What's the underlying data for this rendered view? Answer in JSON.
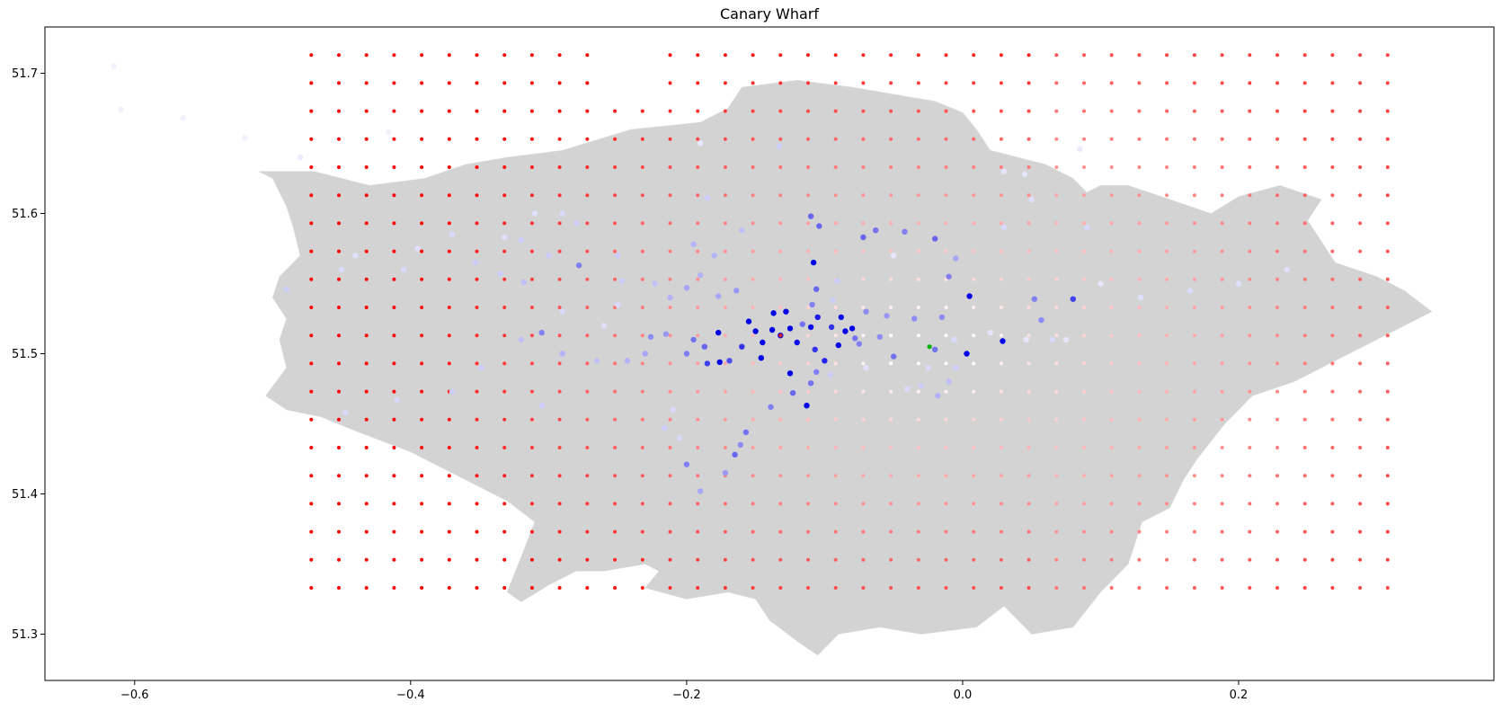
{
  "title": "Canary Wharf",
  "chart_data": {
    "type": "scatter",
    "title": "Canary Wharf",
    "xlabel": "",
    "ylabel": "",
    "xlim": [
      -0.665,
      0.385
    ],
    "ylim": [
      51.267,
      51.733
    ],
    "xticks": [
      -0.6,
      -0.4,
      -0.2,
      0.0,
      0.2
    ],
    "xtick_labels": [
      "−0.6",
      "−0.4",
      "−0.2",
      "0.0",
      "0.2"
    ],
    "yticks": [
      51.3,
      51.4,
      51.5,
      51.6,
      51.7
    ],
    "ytick_labels": [
      "51.3",
      "51.4",
      "51.5",
      "51.6",
      "51.7"
    ],
    "grid": false,
    "legend": "none",
    "colors": {
      "basemap_fill": "#d3d3d3",
      "basemap_edge": "#dcdcdc",
      "grid_points": "#ff0000",
      "stations": "#0000e6",
      "target": "#00b000"
    },
    "basemap": {
      "name": "Greater London boroughs",
      "outline_lonlat": [
        [
          -0.51,
          51.63
        ],
        [
          -0.5,
          51.625
        ],
        [
          -0.49,
          51.605
        ],
        [
          -0.485,
          51.59
        ],
        [
          -0.48,
          51.57
        ],
        [
          -0.495,
          51.555
        ],
        [
          -0.5,
          51.54
        ],
        [
          -0.49,
          51.525
        ],
        [
          -0.495,
          51.51
        ],
        [
          -0.49,
          51.49
        ],
        [
          -0.505,
          51.47
        ],
        [
          -0.49,
          51.46
        ],
        [
          -0.465,
          51.455
        ],
        [
          -0.44,
          51.445
        ],
        [
          -0.4,
          51.43
        ],
        [
          -0.36,
          51.41
        ],
        [
          -0.33,
          51.395
        ],
        [
          -0.31,
          51.38
        ],
        [
          -0.32,
          51.355
        ],
        [
          -0.33,
          51.33
        ],
        [
          -0.32,
          51.323
        ],
        [
          -0.3,
          51.335
        ],
        [
          -0.28,
          51.345
        ],
        [
          -0.26,
          51.345
        ],
        [
          -0.23,
          51.35
        ],
        [
          -0.22,
          51.345
        ],
        [
          -0.23,
          51.333
        ],
        [
          -0.2,
          51.325
        ],
        [
          -0.17,
          51.33
        ],
        [
          -0.15,
          51.325
        ],
        [
          -0.14,
          51.31
        ],
        [
          -0.12,
          51.295
        ],
        [
          -0.105,
          51.285
        ],
        [
          -0.09,
          51.3
        ],
        [
          -0.06,
          51.305
        ],
        [
          -0.03,
          51.3
        ],
        [
          0.01,
          51.305
        ],
        [
          0.03,
          51.32
        ],
        [
          0.05,
          51.3
        ],
        [
          0.08,
          51.305
        ],
        [
          0.1,
          51.33
        ],
        [
          0.12,
          51.35
        ],
        [
          0.13,
          51.38
        ],
        [
          0.15,
          51.39
        ],
        [
          0.16,
          51.41
        ],
        [
          0.17,
          51.425
        ],
        [
          0.19,
          51.45
        ],
        [
          0.21,
          51.47
        ],
        [
          0.24,
          51.48
        ],
        [
          0.27,
          51.495
        ],
        [
          0.3,
          51.51
        ],
        [
          0.33,
          51.525
        ],
        [
          0.34,
          51.53
        ],
        [
          0.32,
          51.545
        ],
        [
          0.3,
          51.555
        ],
        [
          0.285,
          51.56
        ],
        [
          0.27,
          51.565
        ],
        [
          0.26,
          51.58
        ],
        [
          0.25,
          51.595
        ],
        [
          0.26,
          51.61
        ],
        [
          0.23,
          51.62
        ],
        [
          0.2,
          51.612
        ],
        [
          0.18,
          51.6
        ],
        [
          0.15,
          51.61
        ],
        [
          0.12,
          51.62
        ],
        [
          0.1,
          51.62
        ],
        [
          0.09,
          51.615
        ],
        [
          0.08,
          51.625
        ],
        [
          0.06,
          51.635
        ],
        [
          0.04,
          51.64
        ],
        [
          0.02,
          51.645
        ],
        [
          0.01,
          51.66
        ],
        [
          0.0,
          51.672
        ],
        [
          -0.02,
          51.68
        ],
        [
          -0.05,
          51.685
        ],
        [
          -0.08,
          51.69
        ],
        [
          -0.12,
          51.695
        ],
        [
          -0.16,
          51.69
        ],
        [
          -0.17,
          51.675
        ],
        [
          -0.19,
          51.665
        ],
        [
          -0.24,
          51.66
        ],
        [
          -0.29,
          51.645
        ],
        [
          -0.33,
          51.64
        ],
        [
          -0.36,
          51.635
        ],
        [
          -0.39,
          51.625
        ],
        [
          -0.43,
          51.62
        ],
        [
          -0.47,
          51.63
        ],
        [
          -0.51,
          51.63
        ]
      ]
    },
    "grid_points": {
      "lon_start": -0.472,
      "lon_step": 0.02,
      "lon_count": 58,
      "lat_start": 51.333,
      "lat_step": 0.02,
      "lat_count": 20,
      "value_range": [
        0,
        1
      ],
      "value_meaning": "red intensity (1 = saturated red, 0 = white)"
    },
    "stations": [
      {
        "lon": -0.132,
        "lat": 51.513,
        "v": 1.0
      },
      {
        "lon": -0.125,
        "lat": 51.518,
        "v": 1.0
      },
      {
        "lon": -0.138,
        "lat": 51.517,
        "v": 1.0
      },
      {
        "lon": -0.145,
        "lat": 51.508,
        "v": 1.0
      },
      {
        "lon": -0.15,
        "lat": 51.516,
        "v": 1.0
      },
      {
        "lon": -0.128,
        "lat": 51.53,
        "v": 1.0
      },
      {
        "lon": -0.137,
        "lat": 51.529,
        "v": 1.0
      },
      {
        "lon": -0.155,
        "lat": 51.523,
        "v": 1.0
      },
      {
        "lon": -0.177,
        "lat": 51.515,
        "v": 1.0
      },
      {
        "lon": -0.176,
        "lat": 51.494,
        "v": 1.0
      },
      {
        "lon": -0.146,
        "lat": 51.497,
        "v": 1.0
      },
      {
        "lon": -0.12,
        "lat": 51.508,
        "v": 0.95
      },
      {
        "lon": -0.11,
        "lat": 51.519,
        "v": 0.95
      },
      {
        "lon": -0.105,
        "lat": 51.526,
        "v": 0.9
      },
      {
        "lon": -0.088,
        "lat": 51.526,
        "v": 0.95
      },
      {
        "lon": -0.085,
        "lat": 51.516,
        "v": 1.0
      },
      {
        "lon": -0.08,
        "lat": 51.518,
        "v": 1.0
      },
      {
        "lon": -0.09,
        "lat": 51.506,
        "v": 1.0
      },
      {
        "lon": -0.108,
        "lat": 51.565,
        "v": 1.0
      },
      {
        "lon": -0.125,
        "lat": 51.486,
        "v": 1.0
      },
      {
        "lon": -0.113,
        "lat": 51.463,
        "v": 1.0
      },
      {
        "lon": -0.1,
        "lat": 51.495,
        "v": 0.85
      },
      {
        "lon": -0.107,
        "lat": 51.503,
        "v": 0.8
      },
      {
        "lon": -0.095,
        "lat": 51.519,
        "v": 0.8
      },
      {
        "lon": -0.16,
        "lat": 51.505,
        "v": 0.8
      },
      {
        "lon": -0.169,
        "lat": 51.495,
        "v": 0.7
      },
      {
        "lon": -0.185,
        "lat": 51.493,
        "v": 0.75
      },
      {
        "lon": -0.187,
        "lat": 51.505,
        "v": 0.6
      },
      {
        "lon": -0.195,
        "lat": 51.51,
        "v": 0.55
      },
      {
        "lon": -0.2,
        "lat": 51.5,
        "v": 0.5
      },
      {
        "lon": 0.005,
        "lat": 51.541,
        "v": 1.0
      },
      {
        "lon": 0.003,
        "lat": 51.5,
        "v": 1.0
      },
      {
        "lon": 0.029,
        "lat": 51.509,
        "v": 1.0
      },
      {
        "lon": 0.08,
        "lat": 51.539,
        "v": 0.75
      },
      {
        "lon": 0.052,
        "lat": 51.539,
        "v": 0.5
      },
      {
        "lon": 0.057,
        "lat": 51.524,
        "v": 0.45
      },
      {
        "lon": -0.01,
        "lat": 51.555,
        "v": 0.5
      },
      {
        "lon": -0.005,
        "lat": 51.568,
        "v": 0.35
      },
      {
        "lon": -0.015,
        "lat": 51.526,
        "v": 0.45
      },
      {
        "lon": -0.02,
        "lat": 51.503,
        "v": 0.55
      },
      {
        "lon": -0.035,
        "lat": 51.525,
        "v": 0.45
      },
      {
        "lon": -0.05,
        "lat": 51.498,
        "v": 0.55
      },
      {
        "lon": -0.06,
        "lat": 51.512,
        "v": 0.45
      },
      {
        "lon": -0.075,
        "lat": 51.507,
        "v": 0.5
      },
      {
        "lon": -0.078,
        "lat": 51.511,
        "v": 0.55
      },
      {
        "lon": -0.07,
        "lat": 51.53,
        "v": 0.45
      },
      {
        "lon": -0.055,
        "lat": 51.527,
        "v": 0.4
      },
      {
        "lon": -0.063,
        "lat": 51.588,
        "v": 0.55
      },
      {
        "lon": -0.072,
        "lat": 51.583,
        "v": 0.6
      },
      {
        "lon": -0.042,
        "lat": 51.587,
        "v": 0.5
      },
      {
        "lon": -0.02,
        "lat": 51.582,
        "v": 0.6
      },
      {
        "lon": -0.104,
        "lat": 51.591,
        "v": 0.6
      },
      {
        "lon": -0.11,
        "lat": 51.598,
        "v": 0.6
      },
      {
        "lon": -0.106,
        "lat": 51.546,
        "v": 0.6
      },
      {
        "lon": -0.109,
        "lat": 51.535,
        "v": 0.5
      },
      {
        "lon": -0.116,
        "lat": 51.521,
        "v": 0.55
      },
      {
        "lon": -0.11,
        "lat": 51.479,
        "v": 0.55
      },
      {
        "lon": -0.106,
        "lat": 51.487,
        "v": 0.5
      },
      {
        "lon": -0.123,
        "lat": 51.472,
        "v": 0.6
      },
      {
        "lon": -0.139,
        "lat": 51.462,
        "v": 0.5
      },
      {
        "lon": -0.165,
        "lat": 51.428,
        "v": 0.6
      },
      {
        "lon": -0.157,
        "lat": 51.444,
        "v": 0.55
      },
      {
        "lon": -0.2,
        "lat": 51.421,
        "v": 0.5
      },
      {
        "lon": -0.19,
        "lat": 51.402,
        "v": 0.35
      },
      {
        "lon": -0.172,
        "lat": 51.415,
        "v": 0.4
      },
      {
        "lon": -0.161,
        "lat": 51.435,
        "v": 0.45
      },
      {
        "lon": -0.278,
        "lat": 51.563,
        "v": 0.5
      },
      {
        "lon": -0.305,
        "lat": 51.515,
        "v": 0.5
      },
      {
        "lon": -0.226,
        "lat": 51.512,
        "v": 0.45
      },
      {
        "lon": -0.215,
        "lat": 51.514,
        "v": 0.4
      },
      {
        "lon": -0.23,
        "lat": 51.5,
        "v": 0.35
      },
      {
        "lon": -0.243,
        "lat": 51.495,
        "v": 0.3
      },
      {
        "lon": -0.265,
        "lat": 51.495,
        "v": 0.25
      },
      {
        "lon": -0.29,
        "lat": 51.5,
        "v": 0.3
      },
      {
        "lon": -0.32,
        "lat": 51.51,
        "v": 0.25
      },
      {
        "lon": -0.349,
        "lat": 51.49,
        "v": 0.2
      },
      {
        "lon": -0.37,
        "lat": 51.473,
        "v": 0.2
      },
      {
        "lon": -0.41,
        "lat": 51.467,
        "v": 0.15
      },
      {
        "lon": -0.447,
        "lat": 51.458,
        "v": 0.15
      },
      {
        "lon": -0.49,
        "lat": 51.546,
        "v": 0.2
      },
      {
        "lon": -0.45,
        "lat": 51.56,
        "v": 0.15
      },
      {
        "lon": -0.44,
        "lat": 51.57,
        "v": 0.12
      },
      {
        "lon": -0.405,
        "lat": 51.56,
        "v": 0.15
      },
      {
        "lon": -0.395,
        "lat": 51.575,
        "v": 0.12
      },
      {
        "lon": -0.37,
        "lat": 51.585,
        "v": 0.15
      },
      {
        "lon": -0.353,
        "lat": 51.565,
        "v": 0.2
      },
      {
        "lon": -0.335,
        "lat": 51.557,
        "v": 0.2
      },
      {
        "lon": -0.32,
        "lat": 51.581,
        "v": 0.2
      },
      {
        "lon": -0.318,
        "lat": 51.551,
        "v": 0.25
      },
      {
        "lon": -0.3,
        "lat": 51.57,
        "v": 0.2
      },
      {
        "lon": -0.28,
        "lat": 51.593,
        "v": 0.2
      },
      {
        "lon": -0.29,
        "lat": 51.6,
        "v": 0.15
      },
      {
        "lon": -0.31,
        "lat": 51.6,
        "v": 0.12
      },
      {
        "lon": -0.332,
        "lat": 51.583,
        "v": 0.12
      },
      {
        "lon": -0.25,
        "lat": 51.57,
        "v": 0.2
      },
      {
        "lon": -0.247,
        "lat": 51.552,
        "v": 0.2
      },
      {
        "lon": -0.223,
        "lat": 51.55,
        "v": 0.25
      },
      {
        "lon": -0.212,
        "lat": 51.54,
        "v": 0.3
      },
      {
        "lon": -0.2,
        "lat": 51.547,
        "v": 0.35
      },
      {
        "lon": -0.19,
        "lat": 51.556,
        "v": 0.3
      },
      {
        "lon": -0.177,
        "lat": 51.541,
        "v": 0.35
      },
      {
        "lon": -0.164,
        "lat": 51.545,
        "v": 0.4
      },
      {
        "lon": -0.18,
        "lat": 51.57,
        "v": 0.3
      },
      {
        "lon": -0.195,
        "lat": 51.578,
        "v": 0.3
      },
      {
        "lon": -0.16,
        "lat": 51.588,
        "v": 0.25
      },
      {
        "lon": -0.185,
        "lat": 51.611,
        "v": 0.2
      },
      {
        "lon": -0.19,
        "lat": 51.65,
        "v": 0.1
      },
      {
        "lon": -0.133,
        "lat": 51.648,
        "v": 0.2
      },
      {
        "lon": -0.091,
        "lat": 51.552,
        "v": 0.2
      },
      {
        "lon": -0.094,
        "lat": 51.538,
        "v": 0.2
      },
      {
        "lon": -0.05,
        "lat": 51.57,
        "v": 0.1
      },
      {
        "lon": 0.03,
        "lat": 51.59,
        "v": 0.15
      },
      {
        "lon": 0.05,
        "lat": 51.61,
        "v": 0.12
      },
      {
        "lon": 0.09,
        "lat": 51.59,
        "v": 0.15
      },
      {
        "lon": 0.1,
        "lat": 51.55,
        "v": 0.1
      },
      {
        "lon": 0.129,
        "lat": 51.54,
        "v": 0.12
      },
      {
        "lon": 0.165,
        "lat": 51.545,
        "v": 0.15
      },
      {
        "lon": 0.2,
        "lat": 51.55,
        "v": 0.12
      },
      {
        "lon": 0.235,
        "lat": 51.56,
        "v": 0.12
      },
      {
        "lon": 0.046,
        "lat": 51.51,
        "v": 0.1
      },
      {
        "lon": 0.065,
        "lat": 51.51,
        "v": 0.15
      },
      {
        "lon": 0.075,
        "lat": 51.51,
        "v": 0.1
      },
      {
        "lon": -0.005,
        "lat": 51.49,
        "v": 0.2
      },
      {
        "lon": -0.01,
        "lat": 51.48,
        "v": 0.25
      },
      {
        "lon": -0.018,
        "lat": 51.47,
        "v": 0.3
      },
      {
        "lon": -0.03,
        "lat": 51.477,
        "v": 0.2
      },
      {
        "lon": -0.04,
        "lat": 51.475,
        "v": 0.15
      },
      {
        "lon": -0.006,
        "lat": 51.51,
        "v": 0.15
      },
      {
        "lon": 0.02,
        "lat": 51.515,
        "v": 0.1
      },
      {
        "lon": -0.025,
        "lat": 51.49,
        "v": 0.15
      },
      {
        "lon": -0.07,
        "lat": 51.49,
        "v": 0.12
      },
      {
        "lon": -0.096,
        "lat": 51.485,
        "v": 0.2
      },
      {
        "lon": -0.216,
        "lat": 51.447,
        "v": 0.2
      },
      {
        "lon": -0.205,
        "lat": 51.44,
        "v": 0.15
      },
      {
        "lon": -0.21,
        "lat": 51.46,
        "v": 0.15
      },
      {
        "lon": -0.305,
        "lat": 51.463,
        "v": 0.2
      },
      {
        "lon": -0.29,
        "lat": 51.53,
        "v": 0.15
      },
      {
        "lon": -0.25,
        "lat": 51.535,
        "v": 0.15
      },
      {
        "lon": -0.26,
        "lat": 51.52,
        "v": 0.12
      },
      {
        "lon": -0.615,
        "lat": 51.705,
        "v": 0.05
      },
      {
        "lon": -0.61,
        "lat": 51.674,
        "v": 0.06
      },
      {
        "lon": -0.565,
        "lat": 51.668,
        "v": 0.06
      },
      {
        "lon": -0.52,
        "lat": 51.654,
        "v": 0.05
      },
      {
        "lon": -0.416,
        "lat": 51.658,
        "v": 0.06
      },
      {
        "lon": -0.48,
        "lat": 51.64,
        "v": 0.08
      },
      {
        "lon": 0.085,
        "lat": 51.646,
        "v": 0.08
      },
      {
        "lon": 0.03,
        "lat": 51.63,
        "v": 0.1
      },
      {
        "lon": 0.045,
        "lat": 51.628,
        "v": 0.1
      }
    ],
    "target": {
      "lon": -0.024,
      "lat": 51.505
    },
    "other_points": [
      {
        "lon": -0.132,
        "lat": 51.513,
        "color": "#cc2222"
      }
    ]
  }
}
